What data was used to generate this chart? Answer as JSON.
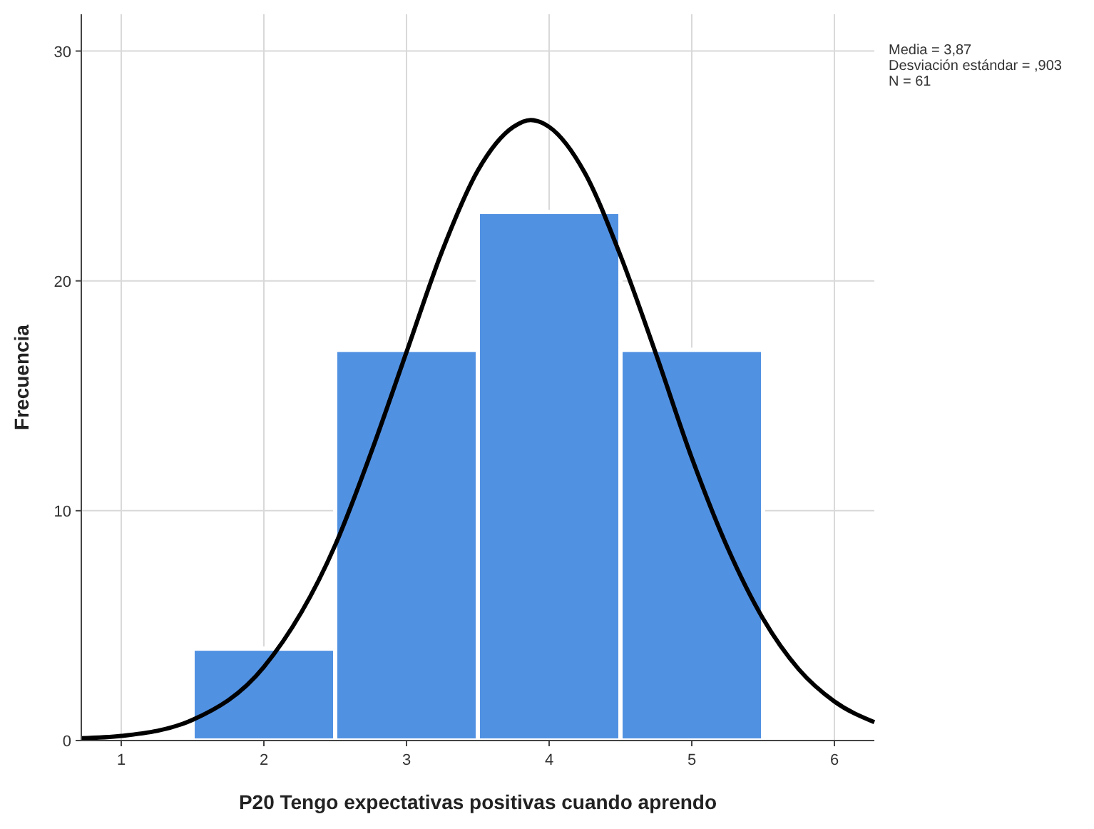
{
  "chart_data": {
    "type": "histogram",
    "xlabel": "P20 Tengo expectativas positivas cuando aprendo",
    "ylabel": "Frecuencia",
    "bins": [
      1.5,
      2.5,
      3.5,
      4.5,
      5.5
    ],
    "values": [
      4,
      17,
      23,
      17
    ],
    "color": "#5191e2",
    "series": [
      {
        "type": "line",
        "color": "#000000",
        "x": [
          0.72,
          1,
          1.5,
          2,
          2.5,
          2.75,
          3,
          3.25,
          3.5,
          3.75,
          3.87,
          4,
          4.25,
          4.5,
          4.75,
          5,
          5.25,
          5.5,
          5.75,
          6,
          6.28
        ],
        "values": [
          0.1,
          0.2,
          0.9,
          3.2,
          8.5,
          12.5,
          16.9,
          21.3,
          24.8,
          26.7,
          27,
          26.7,
          24.7,
          21.1,
          16.8,
          12.3,
          8.4,
          5.3,
          3.1,
          1.7,
          0.8
        ]
      }
    ],
    "xlim": [
      0.72,
      6.28
    ],
    "xticks": [
      1,
      2,
      3,
      4,
      5,
      6
    ],
    "ylim": [
      0,
      31.6
    ],
    "yticks": [
      0,
      10,
      20,
      30
    ],
    "grid": true,
    "annotations": [
      "Media = 3,87",
      "Desviación estándar = ,903",
      "N = 61"
    ]
  }
}
